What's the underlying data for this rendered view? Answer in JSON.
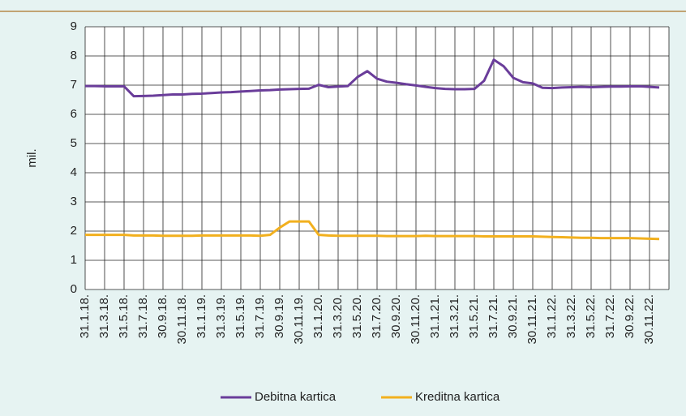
{
  "chart_data": {
    "type": "line",
    "y_label": "mil.",
    "categories": [
      "31.1.18.",
      null,
      "31.3.18.",
      null,
      "31.5.18.",
      null,
      "31.7.18.",
      null,
      "30.9.18.",
      null,
      "30.11.18.",
      null,
      "31.1.19.",
      null,
      "31.3.19.",
      null,
      "31.5.19.",
      null,
      "31.7.19.",
      null,
      "30.9.19.",
      null,
      "30.11.19.",
      null,
      "31.1.20.",
      null,
      "31.3.20.",
      null,
      "31.5.20.",
      null,
      "31.7.20.",
      null,
      "30.9.20.",
      null,
      "30.11.20.",
      null,
      "31.1.21.",
      null,
      "31.3.21.",
      null,
      "31.5.21.",
      null,
      "31.7.21.",
      null,
      "30.9.21.",
      null,
      "30.11.21.",
      null,
      "31.1.22.",
      null,
      "31.3.22.",
      null,
      "31.5.22.",
      null,
      "31.7.22.",
      null,
      "30.9.22.",
      null,
      "30.11.22.",
      null
    ],
    "series": [
      {
        "name": "Debitna kartica",
        "color": "#6a3d9a",
        "values": [
          6.97,
          6.97,
          6.96,
          6.96,
          6.96,
          6.62,
          6.63,
          6.64,
          6.66,
          6.68,
          6.68,
          6.7,
          6.71,
          6.73,
          6.75,
          6.76,
          6.78,
          6.8,
          6.82,
          6.83,
          6.85,
          6.86,
          6.87,
          6.88,
          7.01,
          6.93,
          6.95,
          6.97,
          7.28,
          7.48,
          7.22,
          7.12,
          7.08,
          7.03,
          6.99,
          6.94,
          6.9,
          6.87,
          6.86,
          6.86,
          6.87,
          7.15,
          7.87,
          7.65,
          7.25,
          7.1,
          7.06,
          6.91,
          6.9,
          6.92,
          6.93,
          6.94,
          6.93,
          6.94,
          6.95,
          6.95,
          6.96,
          6.96,
          6.94,
          6.92
        ]
      },
      {
        "name": "Kreditna kartica",
        "color": "#f2b01e",
        "values": [
          1.87,
          1.87,
          1.87,
          1.87,
          1.87,
          1.85,
          1.85,
          1.85,
          1.84,
          1.84,
          1.84,
          1.84,
          1.85,
          1.85,
          1.85,
          1.85,
          1.85,
          1.85,
          1.84,
          1.87,
          2.12,
          2.33,
          2.33,
          2.33,
          1.87,
          1.85,
          1.84,
          1.84,
          1.84,
          1.84,
          1.84,
          1.83,
          1.83,
          1.83,
          1.83,
          1.84,
          1.83,
          1.83,
          1.83,
          1.83,
          1.83,
          1.82,
          1.82,
          1.82,
          1.82,
          1.82,
          1.82,
          1.81,
          1.8,
          1.79,
          1.78,
          1.77,
          1.77,
          1.76,
          1.76,
          1.76,
          1.76,
          1.75,
          1.74,
          1.73
        ]
      }
    ],
    "ylim": [
      0,
      9
    ],
    "yticks": [
      0,
      1,
      2,
      3,
      4,
      5,
      6,
      7,
      8,
      9
    ],
    "grid": true,
    "legend": "bottom"
  }
}
